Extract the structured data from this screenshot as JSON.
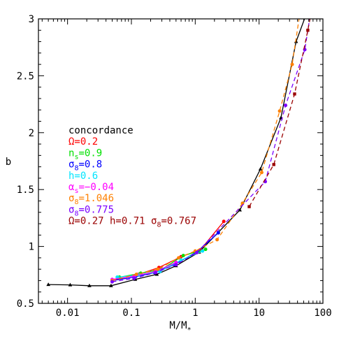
{
  "chart_data": {
    "type": "line",
    "xlabel": "M/M",
    "xlabel_sub": "*",
    "ylabel": "b",
    "xscale": "log",
    "xlim": [
      0.0035,
      100
    ],
    "ylim": [
      0.5,
      3
    ],
    "x_ticks": [
      {
        "value": 0.01,
        "label": "0.01"
      },
      {
        "value": 0.1,
        "label": "0.1"
      },
      {
        "value": 1,
        "label": "1"
      },
      {
        "value": 10,
        "label": "10"
      },
      {
        "value": 100,
        "label": "100"
      }
    ],
    "y_ticks": [
      {
        "value": 0.5,
        "label": "0.5"
      },
      {
        "value": 1,
        "label": "1"
      },
      {
        "value": 1.5,
        "label": "1.5"
      },
      {
        "value": 2,
        "label": "2"
      },
      {
        "value": 2.5,
        "label": "2.5"
      },
      {
        "value": 3,
        "label": "3"
      }
    ],
    "legend_position": "center-left",
    "series": [
      {
        "name": "concordance",
        "color": "#000000",
        "marker": "triangle",
        "dashed": false,
        "x": [
          0.005,
          0.011,
          0.022,
          0.048,
          0.115,
          0.25,
          0.5,
          1.15,
          5.0,
          10.5,
          22.0,
          38.0,
          60.0
        ],
        "y": [
          0.665,
          0.662,
          0.655,
          0.655,
          0.71,
          0.755,
          0.83,
          0.95,
          1.32,
          1.68,
          2.13,
          2.8,
          3.1
        ]
      },
      {
        "name": "Ω=0.2",
        "color": "#ff0000",
        "marker": "circle",
        "dashed": false,
        "x": [
          0.05,
          0.13,
          0.27,
          0.6,
          1.2,
          2.8
        ],
        "y": [
          0.7,
          0.755,
          0.815,
          0.91,
          0.97,
          1.22
        ]
      },
      {
        "name": "n_s=0.9",
        "color": "#00e000",
        "marker": "circle",
        "dashed": false,
        "x": [
          0.065,
          0.14,
          0.3,
          0.65,
          1.45
        ],
        "y": [
          0.73,
          0.765,
          0.8,
          0.92,
          0.975
        ]
      },
      {
        "name": "σ_8=0.8",
        "color": "#0000ff",
        "marker": "circle",
        "dashed": false,
        "x": [
          0.05,
          0.11,
          0.23,
          0.47,
          1.05,
          2.3
        ],
        "y": [
          0.7,
          0.73,
          0.77,
          0.84,
          0.95,
          1.12
        ]
      },
      {
        "name": "h=0.6",
        "color": "#00e5ff",
        "marker": "circle",
        "dashed": false,
        "x": [
          0.06,
          0.13,
          0.28,
          0.6,
          1.3
        ],
        "y": [
          0.73,
          0.75,
          0.78,
          0.88,
          0.96
        ]
      },
      {
        "name": "α_s=−0.04",
        "color": "#ff00ff",
        "marker": "circle",
        "dashed": false,
        "x": [
          0.05,
          0.11,
          0.24,
          0.5
        ],
        "y": [
          0.71,
          0.74,
          0.78,
          0.86
        ]
      },
      {
        "name": "σ_8=1.046",
        "color": "#ff8000",
        "marker": "circle",
        "dashed": true,
        "x": [
          0.05,
          0.12,
          0.26,
          0.55,
          1.0,
          2.2,
          5.5,
          11.0,
          21.0,
          33.0,
          45.0
        ],
        "y": [
          0.7,
          0.755,
          0.8,
          0.9,
          0.96,
          1.06,
          1.38,
          1.65,
          2.19,
          2.6,
          3.1
        ]
      },
      {
        "name": "σ_8=0.775",
        "color": "#7b00ff",
        "marker": "circle",
        "dashed": true,
        "x": [
          0.05,
          0.11,
          0.24,
          0.5,
          1.05,
          12.5,
          26.0,
          52.0,
          66.0
        ],
        "y": [
          0.69,
          0.72,
          0.77,
          0.84,
          0.945,
          1.57,
          2.24,
          2.73,
          3.1
        ]
      },
      {
        "name": "Ω=0.27 h=0.71 σ_8=0.767",
        "color": "#9a0000",
        "marker": "square",
        "dashed": true,
        "x": [
          7.0,
          17.0,
          36.0,
          58.0,
          68.0
        ],
        "y": [
          1.35,
          1.72,
          2.34,
          2.9,
          3.1
        ]
      }
    ]
  },
  "legend": [
    {
      "parts": [
        {
          "t": "concordance"
        }
      ],
      "color": "#000000"
    },
    {
      "parts": [
        {
          "t": "Ω=0.2"
        }
      ],
      "color": "#ff0000"
    },
    {
      "parts": [
        {
          "t": "n"
        },
        {
          "t": "s",
          "sub": true
        },
        {
          "t": "=0.9"
        }
      ],
      "color": "#00e000"
    },
    {
      "parts": [
        {
          "t": "σ"
        },
        {
          "t": "8",
          "sub": true
        },
        {
          "t": "=0.8"
        }
      ],
      "color": "#0000ff"
    },
    {
      "parts": [
        {
          "t": "h=0.6"
        }
      ],
      "color": "#00e5ff"
    },
    {
      "parts": [
        {
          "t": "α"
        },
        {
          "t": "s",
          "sub": true
        },
        {
          "t": "=−0.04"
        }
      ],
      "color": "#ff00ff"
    },
    {
      "parts": [
        {
          "t": "σ"
        },
        {
          "t": "8",
          "sub": true
        },
        {
          "t": "=1.046"
        }
      ],
      "color": "#ff8000"
    },
    {
      "parts": [
        {
          "t": "σ"
        },
        {
          "t": "8",
          "sub": true
        },
        {
          "t": "=0.775"
        }
      ],
      "color": "#7b00ff"
    },
    {
      "parts": [
        {
          "t": "Ω=0.27 h=0.71 σ"
        },
        {
          "t": "8",
          "sub": true
        },
        {
          "t": "=0.767"
        }
      ],
      "color": "#9a0000"
    }
  ]
}
